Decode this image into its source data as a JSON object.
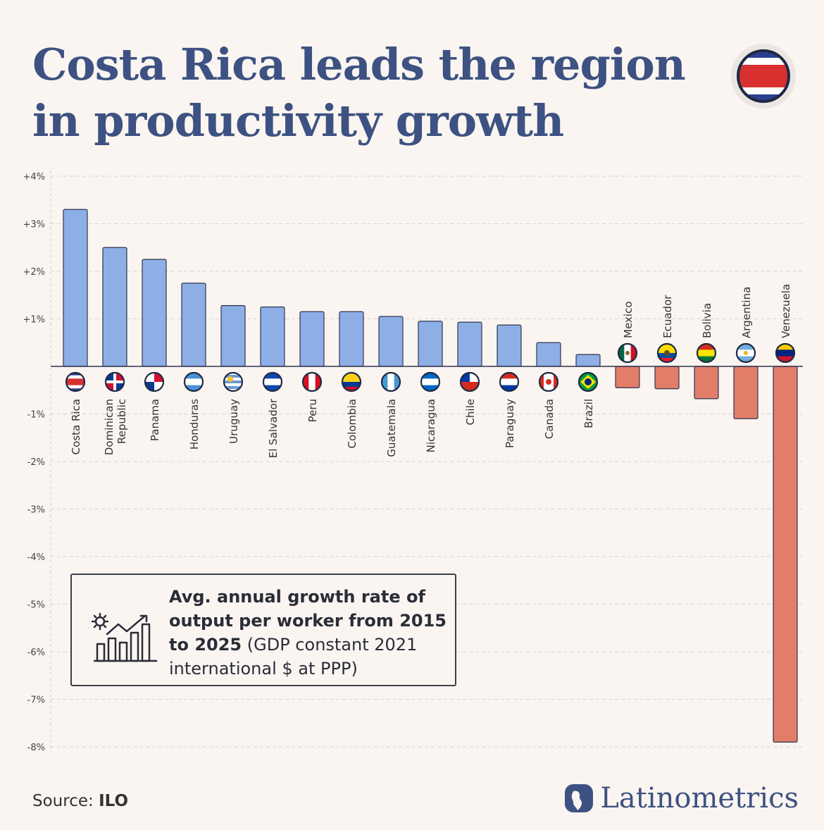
{
  "title": "Costa Rica leads the region in productivity growth",
  "colors": {
    "positive": "#8eaee6",
    "negative": "#e27d6a",
    "title": "#3d5282",
    "grid": "#d9d4d1"
  },
  "chart_data": {
    "type": "bar",
    "title": "Costa Rica leads the region in productivity growth",
    "ylabel": "",
    "xlabel": "",
    "ylim": [
      -8,
      4
    ],
    "yticks": [
      "+4%",
      "+3%",
      "+2%",
      "+1%",
      "-1%",
      "-2%",
      "-3%",
      "-4%",
      "-5%",
      "-6%",
      "-7%",
      "-8%"
    ],
    "ytick_values": [
      4,
      3,
      2,
      1,
      -1,
      -2,
      -3,
      -4,
      -5,
      -6,
      -7,
      -8
    ],
    "categories": [
      "Costa Rica",
      "Dominican Republic",
      "Panama",
      "Honduras",
      "Uruguay",
      "El Salvador",
      "Peru",
      "Colombia",
      "Guatemala",
      "Nicaragua",
      "Chile",
      "Paraguay",
      "Canada",
      "Brazil",
      "Mexico",
      "Ecuador",
      "Bolivia",
      "Argentina",
      "Venezuela"
    ],
    "values": [
      3.3,
      2.5,
      2.25,
      1.75,
      1.28,
      1.25,
      1.15,
      1.15,
      1.05,
      0.95,
      0.93,
      0.87,
      0.5,
      0.25,
      -0.45,
      -0.47,
      -0.68,
      -1.1,
      -7.9
    ],
    "flags": [
      "costa-rica",
      "dominican-republic",
      "panama",
      "honduras",
      "uruguay",
      "el-salvador",
      "peru",
      "colombia",
      "guatemala",
      "nicaragua",
      "chile",
      "paraguay",
      "canada",
      "brazil",
      "mexico",
      "ecuador",
      "bolivia",
      "argentina",
      "venezuela"
    ]
  },
  "legend": {
    "bold": "Avg. annual growth rate of output per worker from 2015 to 2025",
    "normal": "(GDP constant 2021 international $ at PPP)"
  },
  "source": {
    "label": "Source:",
    "value": "ILO"
  },
  "brand": "Latinometrics"
}
